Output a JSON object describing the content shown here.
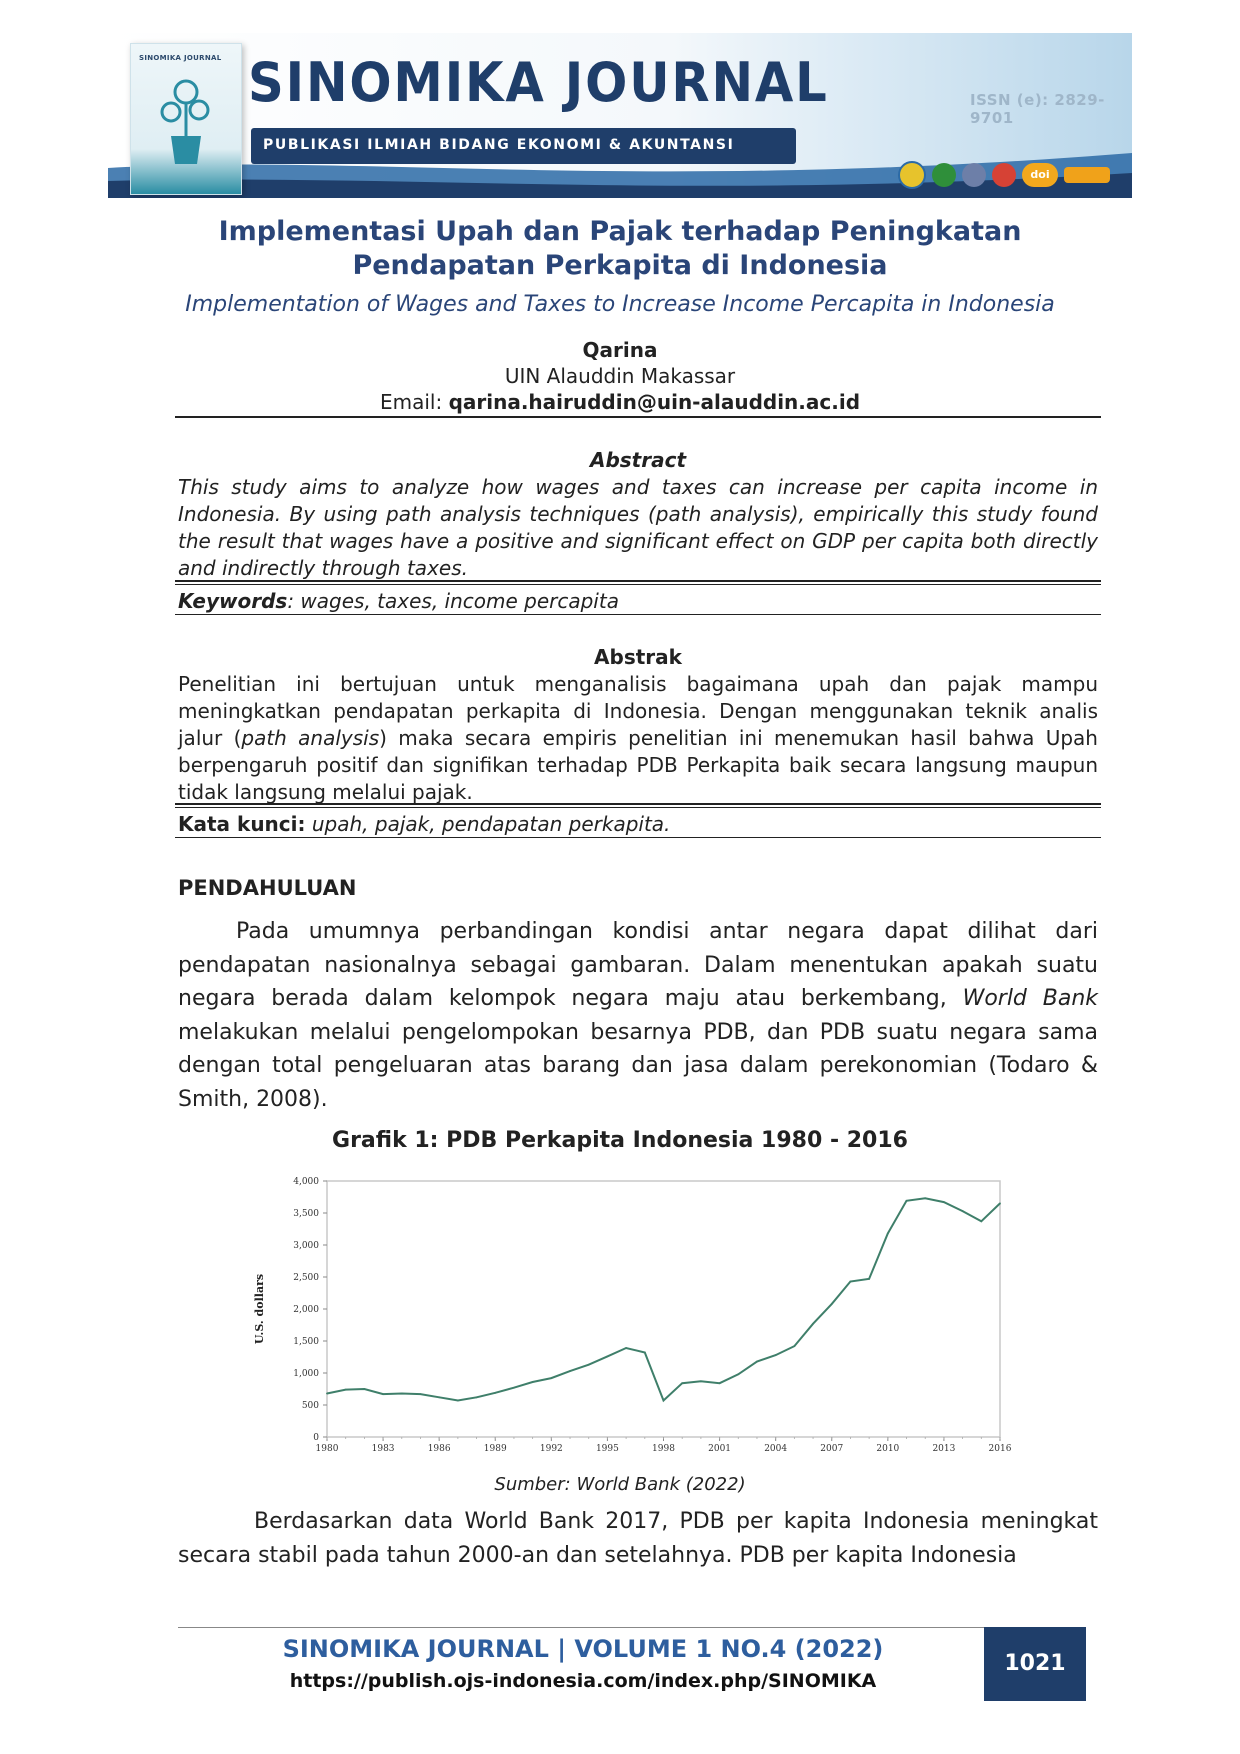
{
  "banner": {
    "journal_name": "SINOMIKA JOURNAL",
    "subtitle": "PUBLIKASI ILMIAH BIDANG EKONOMI & AKUNTANSI",
    "issn": "ISSN (e): 2829-9701",
    "cover_title": "SINOMIKA JOURNAL",
    "logo_doi": "doi"
  },
  "title": "Implementasi Upah dan Pajak terhadap Peningkatan Pendapatan Perkapita di Indonesia",
  "subtitle": "Implementation of Wages and Taxes to Increase Income Percapita in Indonesia",
  "author": {
    "name": "Qarina",
    "affiliation": "UIN Alauddin Makassar",
    "email_label": "Email:",
    "email": "qarina.hairuddin@uin-alauddin.ac.id"
  },
  "abstract_en": {
    "heading": "Abstract",
    "body": "This study aims to analyze how wages and taxes can increase per capita income in Indonesia. By using path analysis techniques (path analysis), empirically this study found the result that wages have a positive and significant effect on GDP per capita both directly and indirectly through taxes.",
    "keywords_label": "Keywords",
    "keywords": ": wages, taxes, income percapita"
  },
  "abstract_id": {
    "heading": "Abstrak",
    "body_part1": "Penelitian ini bertujuan untuk menganalisis bagaimana upah dan pajak mampu meningkatkan pendapatan perkapita di Indonesia. Dengan menggunakan teknik analis jalur (",
    "body_italic": "path analysis",
    "body_part2": ") maka secara empiris penelitian ini menemukan hasil bahwa Upah berpengaruh positif dan signifikan terhadap PDB Perkapita baik secara langsung maupun tidak langsung melalui pajak.",
    "keywords_label": "Kata kunci:",
    "keywords": " upah, pajak, pendapatan perkapita."
  },
  "section_heading": "PENDAHULUAN",
  "paragraph1_part1": "Pada umumnya perbandingan kondisi antar negara dapat dilihat dari pendapatan nasionalnya sebagai gambaran. Dalam menentukan apakah suatu negara berada dalam kelompok negara maju atau berkembang, ",
  "paragraph1_italic": "World Bank",
  "paragraph1_part2": " melakukan melalui pengelompokan besarnya PDB, dan PDB suatu negara sama dengan total pengeluaran atas barang dan jasa dalam perekonomian (Todaro & Smith, 2008).",
  "figure_title": "Grafik 1: PDB Perkapita Indonesia 1980 - 2016",
  "chart_data": {
    "type": "line",
    "title": "",
    "xlabel": "",
    "ylabel": "U.S. dollars",
    "xlim": [
      1980,
      2016
    ],
    "ylim": [
      0,
      4000
    ],
    "x_ticks": [
      "1980",
      "1983",
      "1986",
      "1989",
      "1992",
      "1995",
      "1998",
      "2001",
      "2004",
      "2007",
      "2010",
      "2013",
      "2016"
    ],
    "y_ticks": [
      "0",
      "500",
      "1,000",
      "1,500",
      "2,000",
      "2,500",
      "3,000",
      "3,500",
      "4,000"
    ],
    "grid": false,
    "color": "#3f7f6a",
    "x": [
      1980,
      1981,
      1982,
      1983,
      1984,
      1985,
      1986,
      1987,
      1988,
      1989,
      1990,
      1991,
      1992,
      1993,
      1994,
      1995,
      1996,
      1997,
      1998,
      1999,
      2000,
      2001,
      2002,
      2003,
      2004,
      2005,
      2006,
      2007,
      2008,
      2009,
      2010,
      2011,
      2012,
      2013,
      2014,
      2015,
      2016
    ],
    "y": [
      680,
      740,
      750,
      670,
      680,
      670,
      620,
      570,
      620,
      690,
      770,
      860,
      920,
      1030,
      1130,
      1260,
      1390,
      1320,
      570,
      840,
      870,
      840,
      980,
      1180,
      1280,
      1420,
      1770,
      2080,
      2430,
      2470,
      3180,
      3690,
      3730,
      3670,
      3530,
      3370,
      3650
    ]
  },
  "source": "Sumber: World Bank (2022)",
  "paragraph2": "Berdasarkan data World Bank 2017, PDB per kapita Indonesia meningkat secara stabil pada tahun 2000-an dan setelahnya. PDB per kapita Indonesia",
  "footer": {
    "journal": "SINOMIKA JOURNAL | VOLUME 1 NO.4 (2022)",
    "url": "https://publish.ojs-indonesia.com/index.php/SINOMIKA",
    "page": "1021"
  }
}
